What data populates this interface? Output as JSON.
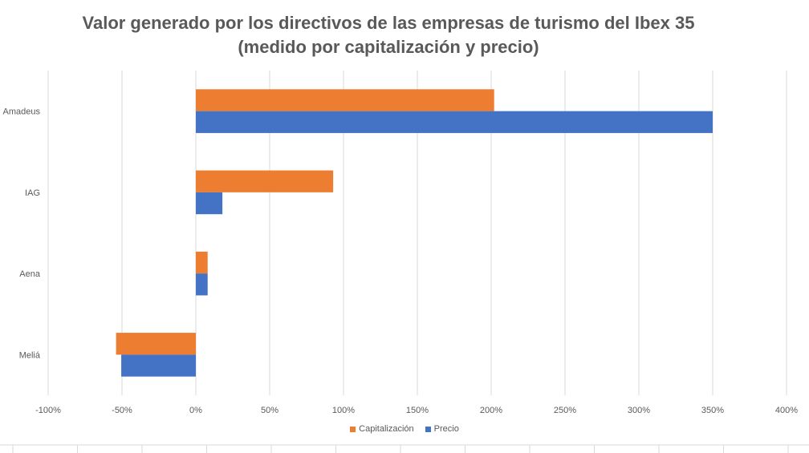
{
  "chart_data": {
    "type": "bar",
    "orientation": "horizontal",
    "title": "Valor generado por los directivos de las empresas de turismo del Ibex 35",
    "subtitle": "(medido por capitalización y precio)",
    "categories": [
      "Amadeus",
      "IAG",
      "Aena",
      "Meliá"
    ],
    "series": [
      {
        "name": "Capitalización",
        "color": "#ED7D31",
        "values": [
          202,
          93,
          8,
          -54
        ]
      },
      {
        "name": "Precio",
        "color": "#4472C4",
        "values": [
          350,
          18,
          8,
          -50.5
        ]
      }
    ],
    "xlim": [
      -100,
      400
    ],
    "xticks": [
      -100,
      -50,
      0,
      50,
      100,
      150,
      200,
      250,
      300,
      350,
      400
    ],
    "xtick_labels": [
      "-100%",
      "-50%",
      "0%",
      "50%",
      "100%",
      "150%",
      "200%",
      "250%",
      "300%",
      "350%",
      "400%"
    ],
    "grid": true,
    "legend_position": "bottom"
  }
}
